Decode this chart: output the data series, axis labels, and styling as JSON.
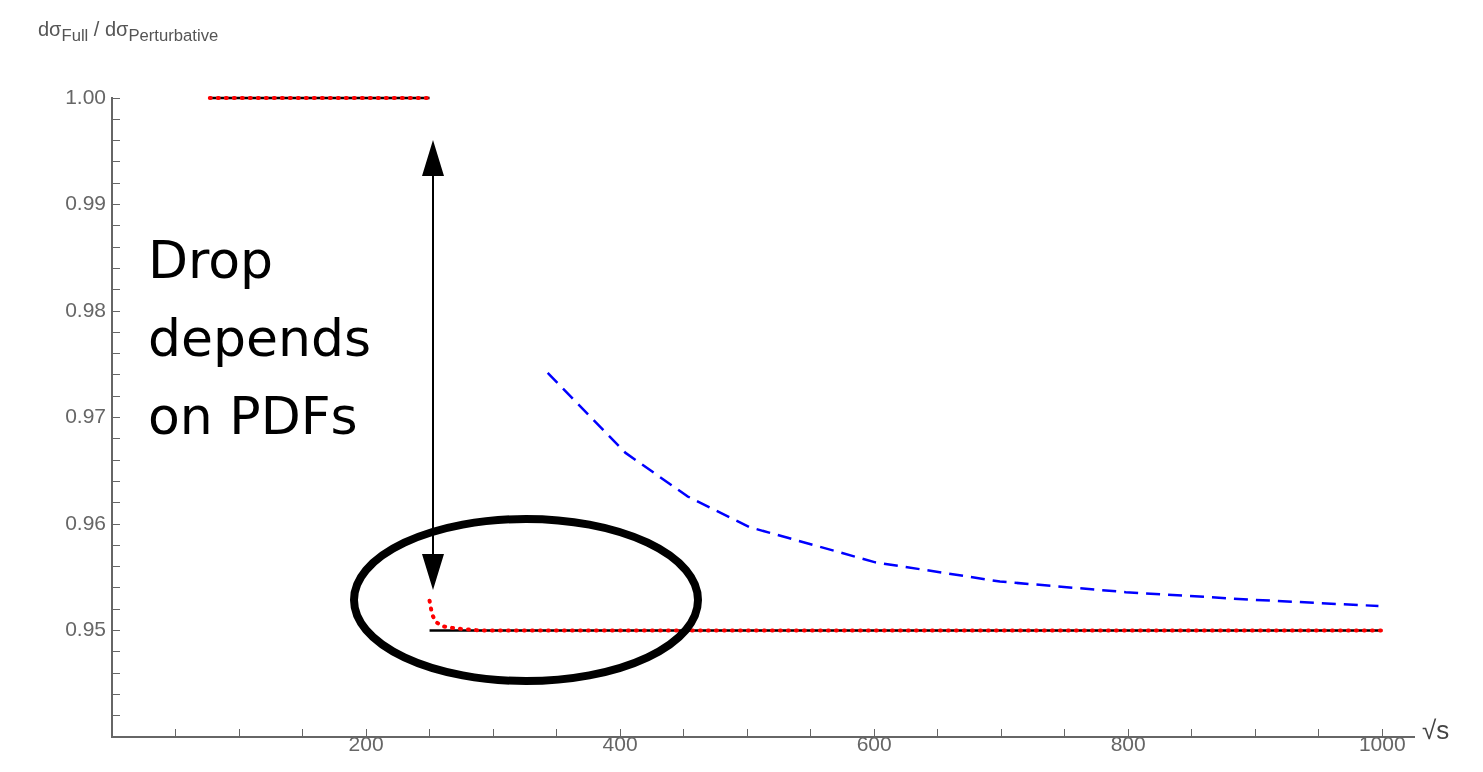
{
  "chart_data": {
    "type": "line",
    "xlabel": "√s",
    "ylabel": "dσ$_{Full}$ / dσ$_{Perturbative}$",
    "xlim": [
      0,
      1025
    ],
    "ylim": [
      0.94,
      1.0
    ],
    "xticks": [
      {
        "value": 50,
        "label": null
      },
      {
        "value": 100,
        "label": null
      },
      {
        "value": 150,
        "label": null
      },
      200,
      {
        "value": 250,
        "label": null
      },
      {
        "value": 300,
        "label": null
      },
      {
        "value": 350,
        "label": null
      },
      400,
      {
        "value": 450,
        "label": null
      },
      {
        "value": 500,
        "label": null
      },
      {
        "value": 550,
        "label": null
      },
      600,
      {
        "value": 650,
        "label": null
      },
      {
        "value": 700,
        "label": null
      },
      {
        "value": 750,
        "label": null
      },
      800,
      {
        "value": 850,
        "label": null
      },
      {
        "value": 900,
        "label": null
      },
      {
        "value": 950,
        "label": null
      },
      1000
    ],
    "yticks": [
      {
        "value": 0.942,
        "label": null
      },
      {
        "value": 0.944,
        "label": null
      },
      {
        "value": 0.946,
        "label": null
      },
      {
        "value": 0.948,
        "label": null
      },
      {
        "value": 0.95,
        "label": "0.95"
      },
      {
        "value": 0.952,
        "label": null
      },
      {
        "value": 0.954,
        "label": null
      },
      {
        "value": 0.956,
        "label": null
      },
      {
        "value": 0.958,
        "label": null
      },
      {
        "value": 0.96,
        "label": "0.96"
      },
      {
        "value": 0.962,
        "label": null
      },
      {
        "value": 0.964,
        "label": null
      },
      {
        "value": 0.966,
        "label": null
      },
      {
        "value": 0.968,
        "label": null
      },
      {
        "value": 0.97,
        "label": "0.97"
      },
      {
        "value": 0.972,
        "label": null
      },
      {
        "value": 0.974,
        "label": null
      },
      {
        "value": 0.976,
        "label": null
      },
      {
        "value": 0.978,
        "label": null
      },
      {
        "value": 0.98,
        "label": "0.98"
      },
      {
        "value": 0.982,
        "label": null
      },
      {
        "value": 0.984,
        "label": null
      },
      {
        "value": 0.986,
        "label": null
      },
      {
        "value": 0.988,
        "label": null
      },
      {
        "value": 0.99,
        "label": "0.99"
      },
      {
        "value": 0.992,
        "label": null
      },
      {
        "value": 0.994,
        "label": null
      },
      {
        "value": 0.996,
        "label": null
      },
      {
        "value": 0.998,
        "label": null
      },
      {
        "value": 1.0,
        "label": "1.00"
      }
    ],
    "grid": false,
    "legend": false,
    "marker": "none",
    "series": [
      {
        "color": "#000000",
        "line_style": "solid",
        "x": [
          77,
          250
        ],
        "values": [
          1.0,
          1.0
        ]
      },
      {
        "color": "#000000",
        "line_style": "solid",
        "x": [
          250,
          1000
        ],
        "values": [
          0.95,
          0.95
        ]
      },
      {
        "color": "#ff0000",
        "line_style": "dotted",
        "x": [
          77,
          250
        ],
        "values": [
          1.0,
          1.0
        ]
      },
      {
        "color": "#ff0000",
        "line_style": "dotted",
        "x": [
          250,
          252,
          255,
          260,
          270,
          290,
          1000
        ],
        "values": [
          0.9528,
          0.9515,
          0.9508,
          0.9504,
          0.9502,
          0.95,
          0.95
        ]
      },
      {
        "color": "#0000ff",
        "line_style": "dashed",
        "x": [
          343,
          404,
          453,
          502,
          601,
          699,
          798,
          896,
          997
        ],
        "values": [
          0.9742,
          0.9667,
          0.9626,
          0.9597,
          0.9564,
          0.9546,
          0.9536,
          0.9529,
          0.9523
        ]
      }
    ],
    "annotations": [
      "Drop depends on PDFs"
    ]
  }
}
